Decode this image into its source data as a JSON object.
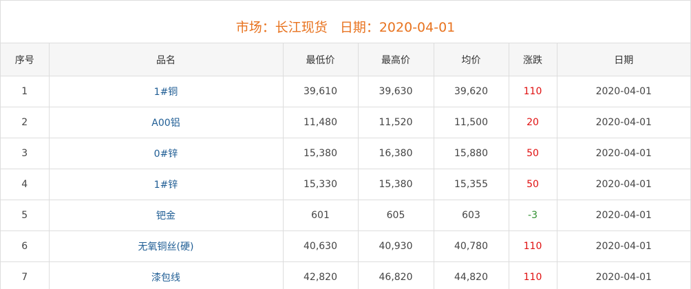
{
  "header": {
    "title": "市场：长江现货   日期：2020-04-01"
  },
  "table": {
    "columns": [
      "序号",
      "品名",
      "最低价",
      "最高价",
      "均价",
      "涨跌",
      "日期"
    ],
    "rows": [
      [
        "1",
        "1#铜",
        "39,610",
        "39,630",
        "39,620",
        "110",
        "2020-04-01"
      ],
      [
        "2",
        "A00铝",
        "11,480",
        "11,520",
        "11,500",
        "20",
        "2020-04-01"
      ],
      [
        "3",
        "0#锌",
        "15,380",
        "16,380",
        "15,880",
        "50",
        "2020-04-01"
      ],
      [
        "4",
        "1#锌",
        "15,330",
        "15,380",
        "15,355",
        "50",
        "2020-04-01"
      ],
      [
        "5",
        "钯金",
        "601",
        "605",
        "603",
        "-3",
        "2020-04-01"
      ],
      [
        "6",
        "无氧铜丝(硬)",
        "40,630",
        "40,930",
        "40,780",
        "110",
        "2020-04-01"
      ],
      [
        "7",
        "漆包线",
        "42,820",
        "46,820",
        "44,820",
        "110",
        "2020-04-01"
      ]
    ]
  }
}
